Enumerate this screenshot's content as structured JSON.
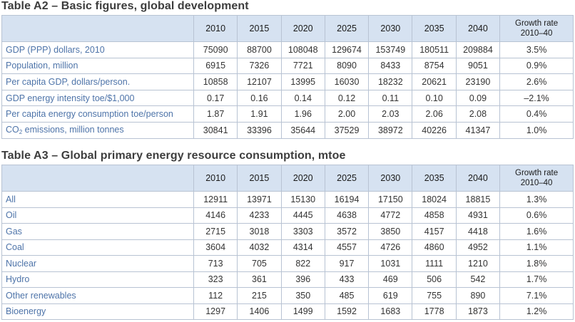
{
  "table_a2": {
    "title": "Table A2 – Basic figures, global development",
    "headers": [
      "2010",
      "2015",
      "2020",
      "2025",
      "2030",
      "2035",
      "2040"
    ],
    "growth_header": [
      "Growth rate",
      "2010–40"
    ],
    "rows": [
      {
        "label": "GDP (PPP) dollars, 2010",
        "values": [
          "75090",
          "88700",
          "108048",
          "129674",
          "153749",
          "180511",
          "209884"
        ],
        "growth": "3.5%"
      },
      {
        "label": "Population, million",
        "values": [
          "6915",
          "7326",
          "7721",
          "8090",
          "8433",
          "8754",
          "9051"
        ],
        "growth": "0.9%"
      },
      {
        "label": "Per capita GDP, dollars/person.",
        "values": [
          "10858",
          "12107",
          "13995",
          "16030",
          "18232",
          "20621",
          "23190"
        ],
        "growth": "2.6%"
      },
      {
        "label": "GDP energy intensity toe/$1,000",
        "values": [
          "0.17",
          "0.16",
          "0.14",
          "0.12",
          "0.11",
          "0.10",
          "0.09"
        ],
        "growth": "–2.1%"
      },
      {
        "label": "Per capita energy consumption toe/person",
        "values": [
          "1.87",
          "1.91",
          "1.96",
          "2.00",
          "2.03",
          "2.06",
          "2.08"
        ],
        "growth": "0.4%"
      },
      {
        "label_pre": "CO",
        "label_sub": "2",
        "label_post": " emissions, million tonnes",
        "values": [
          "30841",
          "33396",
          "35644",
          "37529",
          "38972",
          "40226",
          "41347"
        ],
        "growth": "1.0%"
      }
    ]
  },
  "table_a3": {
    "title": "Table A3 – Global primary energy resource consumption, mtoe",
    "headers": [
      "2010",
      "2015",
      "2020",
      "2025",
      "2030",
      "2035",
      "2040"
    ],
    "growth_header": [
      "Growth rate",
      "2010–40"
    ],
    "rows": [
      {
        "label": "All",
        "values": [
          "12911",
          "13971",
          "15130",
          "16194",
          "17150",
          "18024",
          "18815"
        ],
        "growth": "1.3%"
      },
      {
        "label": "Oil",
        "values": [
          "4146",
          "4233",
          "4445",
          "4638",
          "4772",
          "4858",
          "4931"
        ],
        "growth": "0.6%"
      },
      {
        "label": "Gas",
        "values": [
          "2715",
          "3018",
          "3303",
          "3572",
          "3850",
          "4157",
          "4418"
        ],
        "growth": "1.6%"
      },
      {
        "label": "Coal",
        "values": [
          "3604",
          "4032",
          "4314",
          "4557",
          "4726",
          "4860",
          "4952"
        ],
        "growth": "1.1%"
      },
      {
        "label": "Nuclear",
        "values": [
          "713",
          "705",
          "822",
          "917",
          "1031",
          "1111",
          "1210"
        ],
        "growth": "1.8%"
      },
      {
        "label": "Hydro",
        "values": [
          "323",
          "361",
          "396",
          "433",
          "469",
          "506",
          "542"
        ],
        "growth": "1.7%"
      },
      {
        "label": "Other renewables",
        "values": [
          "112",
          "215",
          "350",
          "485",
          "619",
          "755",
          "890"
        ],
        "growth": "7.1%"
      },
      {
        "label": "Bioenergy",
        "values": [
          "1297",
          "1406",
          "1499",
          "1592",
          "1683",
          "1778",
          "1873"
        ],
        "growth": "1.2%"
      }
    ]
  }
}
